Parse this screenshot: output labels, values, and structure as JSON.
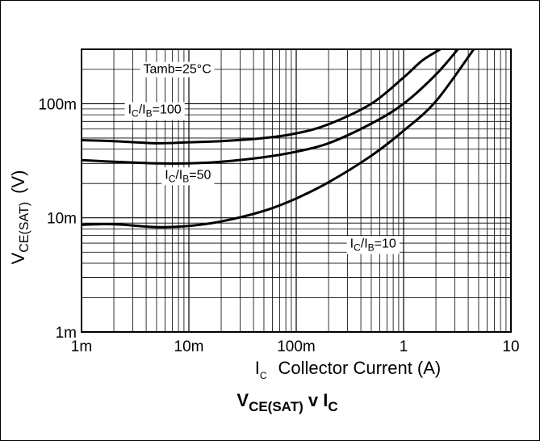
{
  "chart_data": {
    "type": "line",
    "title": {
      "main": "V",
      "main_sub": "CE(SAT)",
      "connector": " v I",
      "connector_sub": "C"
    },
    "xlabel": {
      "symbol": "I",
      "symbol_sub": "C",
      "text": "Collector Current (A)"
    },
    "ylabel": {
      "symbol": "V",
      "symbol_sub": "CE(SAT)",
      "unit": "(V)"
    },
    "xscale": "log",
    "yscale": "log",
    "xlim": [
      0.001,
      10
    ],
    "ylim": [
      0.001,
      0.3
    ],
    "x_ticks": [
      {
        "value": 0.001,
        "label": "1m"
      },
      {
        "value": 0.01,
        "label": "10m"
      },
      {
        "value": 0.1,
        "label": "100m"
      },
      {
        "value": 1,
        "label": "1"
      },
      {
        "value": 10,
        "label": "10"
      }
    ],
    "y_ticks": [
      {
        "value": 0.001,
        "label": "1m"
      },
      {
        "value": 0.01,
        "label": "10m"
      },
      {
        "value": 0.1,
        "label": "100m"
      }
    ],
    "grid": true,
    "annotations": [
      {
        "text": "Tamb=25°C",
        "x": 0.0078,
        "y": 0.185
      },
      {
        "pre": "I",
        "sub1": "C",
        "mid": "/I",
        "sub2": "B",
        "post": "=100",
        "x": 0.0048,
        "y": 0.082
      },
      {
        "pre": "I",
        "sub1": "C",
        "mid": "/I",
        "sub2": "B",
        "post": "=50",
        "x": 0.0098,
        "y": 0.022
      },
      {
        "pre": "I",
        "sub1": "C",
        "mid": "/I",
        "sub2": "B",
        "post": "=10",
        "x": 0.52,
        "y": 0.0055
      }
    ],
    "series": [
      {
        "x": [
          0.001,
          0.002,
          0.005,
          0.01,
          0.02,
          0.05,
          0.1,
          0.2,
          0.5,
          1,
          1.5,
          2.2
        ],
        "y": [
          0.048,
          0.047,
          0.045,
          0.046,
          0.047,
          0.05,
          0.055,
          0.066,
          0.1,
          0.17,
          0.24,
          0.3
        ]
      },
      {
        "x": [
          0.001,
          0.002,
          0.005,
          0.01,
          0.02,
          0.05,
          0.1,
          0.2,
          0.5,
          1,
          2,
          3.2
        ],
        "y": [
          0.032,
          0.031,
          0.03,
          0.03,
          0.031,
          0.034,
          0.038,
          0.045,
          0.067,
          0.1,
          0.18,
          0.3
        ]
      },
      {
        "x": [
          0.001,
          0.002,
          0.005,
          0.01,
          0.02,
          0.05,
          0.1,
          0.2,
          0.5,
          1,
          2,
          4.5
        ],
        "y": [
          0.0087,
          0.0088,
          0.0083,
          0.0085,
          0.0093,
          0.0115,
          0.0148,
          0.0205,
          0.035,
          0.058,
          0.105,
          0.3
        ]
      }
    ]
  }
}
